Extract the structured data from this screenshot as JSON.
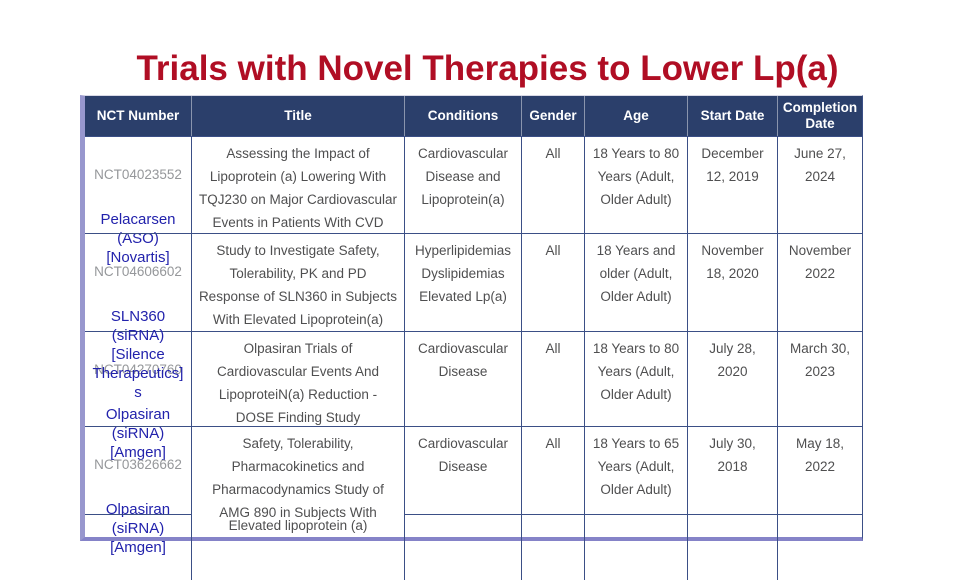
{
  "slide": {
    "title": "Trials with Novel Therapies to Lower Lp(a)"
  },
  "colors": {
    "title_red": "#b00e24",
    "header_bg": "#2b3f6b",
    "grid": "#3b4f86",
    "body_text": "#4f4f50",
    "nct_gray": "#95979a",
    "annotation_blue": "#2222ac",
    "bottom_border": "#8583c8",
    "left_border": "#9897ce"
  },
  "table": {
    "columns": [
      "NCT Number",
      "Title",
      "Conditions",
      "Gender",
      "Age",
      "Start Date",
      "Completion Date"
    ],
    "rows": [
      {
        "nct": "NCT04023552",
        "annotation": [
          "Pelacarsen",
          "(ASO)",
          "[Novartis]"
        ],
        "title": [
          "Assessing the Impact of",
          "Lipoprotein (a) Lowering With",
          "TQJ230 on Major Cardiovascular",
          "Events in Patients With CVD"
        ],
        "conditions": [
          "Cardiovascular",
          "Disease and",
          "Lipoprotein(a)"
        ],
        "gender": "All",
        "age": [
          "18 Years to 80",
          "Years (Adult,",
          "Older Adult)"
        ],
        "start_date": [
          "December",
          "12, 2019"
        ],
        "completion_date": [
          "June 27,",
          "2024"
        ]
      },
      {
        "nct": "NCT04606602",
        "annotation": [
          "SLN360",
          "(siRNA)",
          "[Silence",
          "Therapeutics]",
          "s"
        ],
        "title": [
          "Study to Investigate Safety,",
          "Tolerability, PK and PD",
          "Response of SLN360 in Subjects",
          "With Elevated Lipoprotein(a)"
        ],
        "conditions": [
          "Hyperlipidemias",
          "Dyslipidemias",
          "Elevated Lp(a)"
        ],
        "gender": "All",
        "age": [
          "18 Years and",
          "older (Adult,",
          "Older Adult)"
        ],
        "start_date": [
          "November",
          "18, 2020"
        ],
        "completion_date": [
          "November",
          "2022"
        ]
      },
      {
        "nct": "NCT04270760",
        "annotation": [
          "Olpasiran",
          "(siRNA)",
          "[Amgen]"
        ],
        "title": [
          "Olpasiran Trials of",
          "Cardiovascular Events And",
          "LipoproteiN(a) Reduction -",
          "DOSE Finding Study"
        ],
        "conditions": [
          "Cardiovascular",
          "Disease"
        ],
        "gender": "All",
        "age": [
          "18 Years to 80",
          "Years (Adult,",
          "Older Adult)"
        ],
        "start_date": [
          "July 28,",
          "2020"
        ],
        "completion_date": [
          "March 30,",
          "2023"
        ]
      },
      {
        "nct": "NCT03626662",
        "annotation": [
          "Olpasiran",
          "(siRNA)",
          "[Amgen]"
        ],
        "title": [
          "Safety, Tolerability,",
          "Pharmacokinetics and",
          "Pharmacodynamics Study of",
          "AMG 890 in Subjects With"
        ],
        "conditions": [
          "Cardiovascular",
          "Disease"
        ],
        "gender": "All",
        "age": [
          "18 Years to 65",
          "Years (Adult,",
          "Older Adult)"
        ],
        "start_date": [
          "July 30,",
          "2018"
        ],
        "completion_date": [
          "May 18,",
          "2022"
        ]
      }
    ],
    "footer_note": "Elevated lipoprotein (a)"
  }
}
